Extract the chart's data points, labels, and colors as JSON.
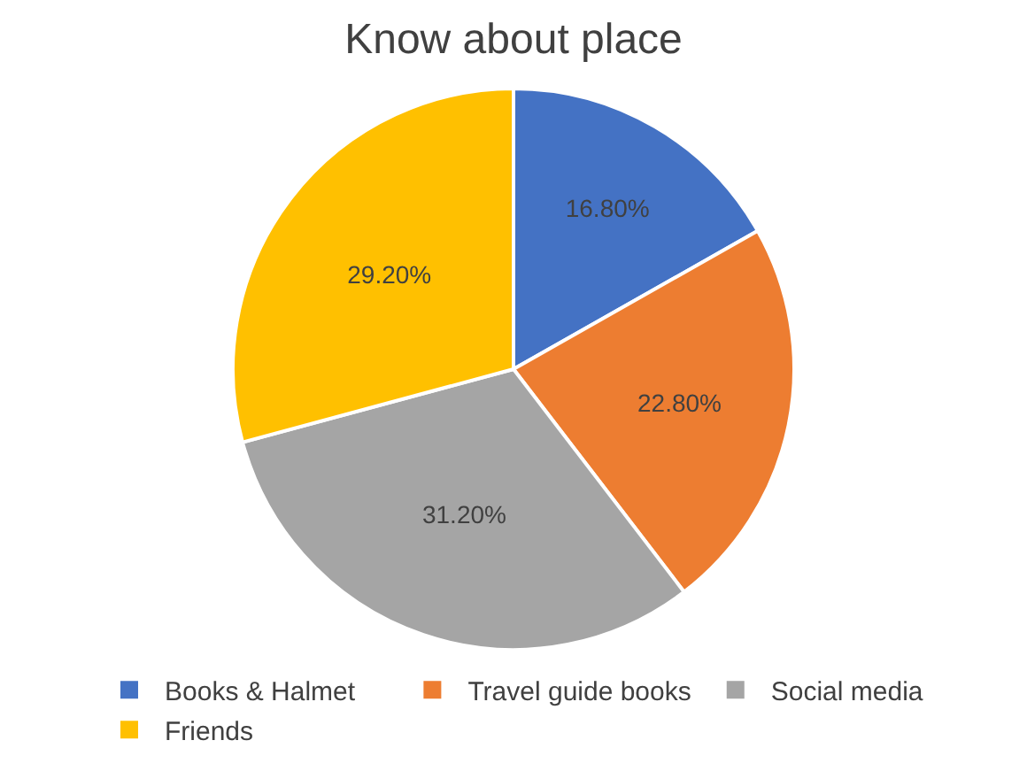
{
  "chart_data": {
    "type": "pie",
    "title": "Know about place",
    "categories": [
      "Books & Halmet",
      "Travel guide books",
      "Social media",
      "Friends"
    ],
    "values": [
      16.8,
      22.8,
      31.2,
      29.2
    ],
    "value_labels": [
      "16.80%",
      "22.80%",
      "31.20%",
      "29.20%"
    ],
    "colors": [
      "#4472c4",
      "#ed7d31",
      "#a5a5a5",
      "#ffc000"
    ],
    "legend": "bottom"
  }
}
